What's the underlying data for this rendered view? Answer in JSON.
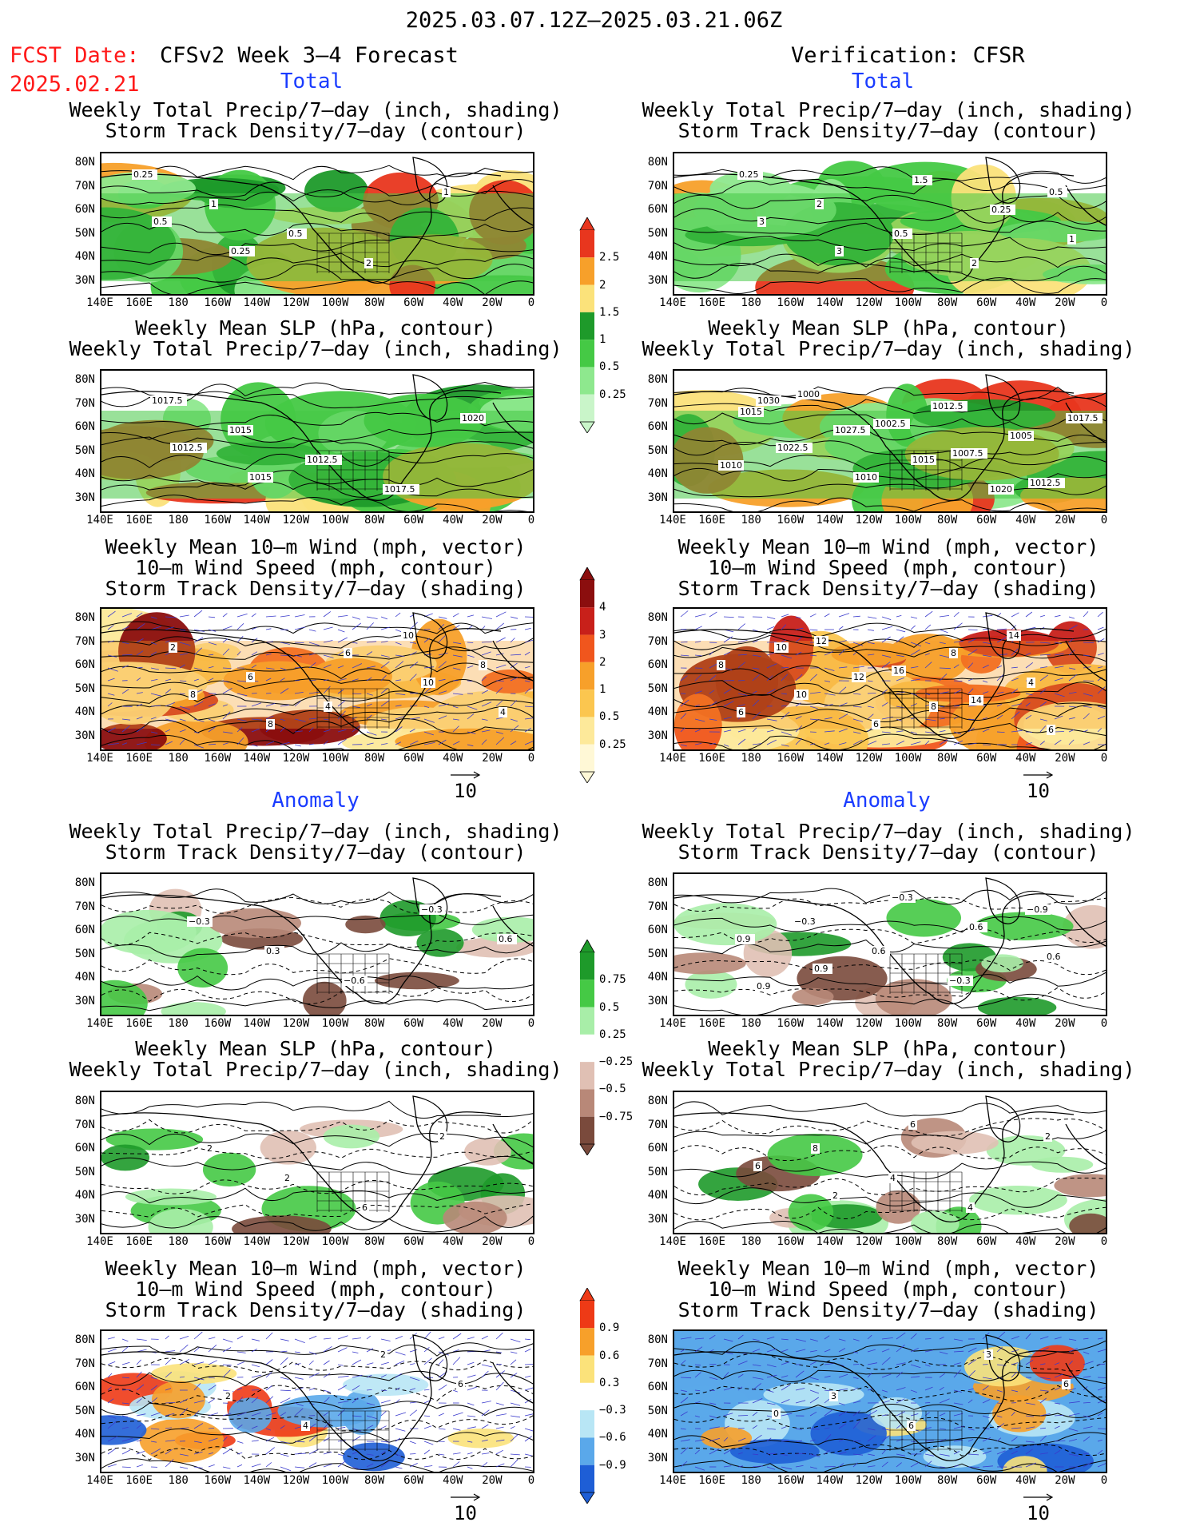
{
  "header": {
    "date_range": "2025.03.07.12Z–2025.03.21.06Z",
    "fcst_label": "FCST Date:",
    "fcst_date": "2025.02.21",
    "left_title": "CFSv2 Week 3–4 Forecast",
    "right_title": "Verification: CFSR"
  },
  "sections": {
    "total": "Total",
    "anomaly": "Anomaly"
  },
  "axes": {
    "lat_labels": [
      "80N",
      "70N",
      "60N",
      "50N",
      "40N",
      "30N"
    ],
    "lon_labels": [
      "140E",
      "160E",
      "180",
      "160W",
      "140W",
      "120W",
      "100W",
      "80W",
      "60W",
      "40W",
      "20W",
      "0"
    ]
  },
  "panel_titles": {
    "precip_storm": [
      "Weekly Total Precip/7–day (inch, shading)",
      "Storm Track Density/7–day (contour)"
    ],
    "slp_precip": [
      "Weekly Mean SLP (hPa, contour)",
      "Weekly Total Precip/7–day (inch, shading)"
    ],
    "wind_storm": [
      "Weekly Mean 10–m Wind (mph, vector)",
      "10–m Wind Speed (mph, contour)",
      "Storm Track Density/7–day (shading)"
    ]
  },
  "vector_key": "10",
  "colorbars": {
    "precip_total": {
      "labels": [
        "2.5",
        "2",
        "1.5",
        "1",
        "0.5",
        "0.25"
      ],
      "colors": [
        "#e8361e",
        "#f7a02a",
        "#fbe27a",
        "#1e9a2a",
        "#45c945",
        "#8ee88e",
        "#c9f5c9"
      ]
    },
    "storm_total": {
      "labels": [
        "4",
        "3",
        "2",
        "1",
        "0.5",
        "0.25"
      ],
      "colors": [
        "#8b0e0e",
        "#c8201a",
        "#f0561d",
        "#f7a02a",
        "#fbc64f",
        "#fde99a",
        "#fff8d6"
      ]
    },
    "precip_anom": {
      "labels": [
        "0.75",
        "0.5",
        "0.25",
        "−0.25",
        "−0.5",
        "−0.75"
      ],
      "colors": [
        "#1e9a2a",
        "#45c945",
        "#a8eea8",
        "#ffffff",
        "#e0c0b4",
        "#b88878",
        "#7a4a3c"
      ]
    },
    "storm_anom": {
      "labels": [
        "0.9",
        "0.6",
        "0.3",
        "−0.3",
        "−0.6",
        "−0.9"
      ],
      "colors": [
        "#ee3a16",
        "#f7a02a",
        "#fbe27a",
        "#ffffff",
        "#b8e6f5",
        "#5aa8ea",
        "#1e5ed6"
      ]
    }
  },
  "contour_labels": {
    "f_total_precip": [
      "0.25",
      "1",
      "0.5",
      "2",
      "1",
      "0.5",
      "0.25"
    ],
    "v_total_precip": [
      "0.25",
      "2",
      "0.5",
      "2",
      "0.5",
      "3",
      "3",
      "1.5",
      "0.25",
      "1"
    ],
    "f_total_slp": [
      "1017.5",
      "1015",
      "1012.5",
      "1017.5",
      "1020",
      "1012.5",
      "1015"
    ],
    "v_total_slp": [
      "1030",
      "1027.5",
      "1015",
      "1020",
      "1017.5",
      "1022.5",
      "1010",
      "1012.5",
      "1005",
      "1010",
      "1000",
      "1002.5",
      "1007.5",
      "1012.5",
      "1015"
    ],
    "f_total_wind": [
      "2",
      "6",
      "4",
      "10",
      "8",
      "8",
      "8",
      "6",
      "10",
      "4"
    ],
    "v_total_wind": [
      "10",
      "12",
      "8",
      "14",
      "8",
      "10",
      "6",
      "8",
      "4",
      "6",
      "12",
      "16",
      "14",
      "6"
    ],
    "f_anom_precip": [
      "−0.3",
      "0.3",
      "−0.6",
      "−0.3",
      "0.6"
    ],
    "v_anom_precip": [
      "−0.3",
      "0.6",
      "−0.3",
      "−0.9",
      "0.9",
      "0.9",
      "−0.3",
      "0.6",
      "0.6",
      "0.9"
    ],
    "f_anom_slp": [
      "2",
      "2",
      "6",
      "2"
    ],
    "v_anom_slp": [
      "8",
      "4",
      "4",
      "2",
      "6",
      "2",
      "6"
    ],
    "f_anom_wind": [
      "2",
      "4",
      "2",
      "6"
    ],
    "v_anom_wind": [
      "3",
      "6",
      "3",
      "6",
      "0"
    ]
  }
}
